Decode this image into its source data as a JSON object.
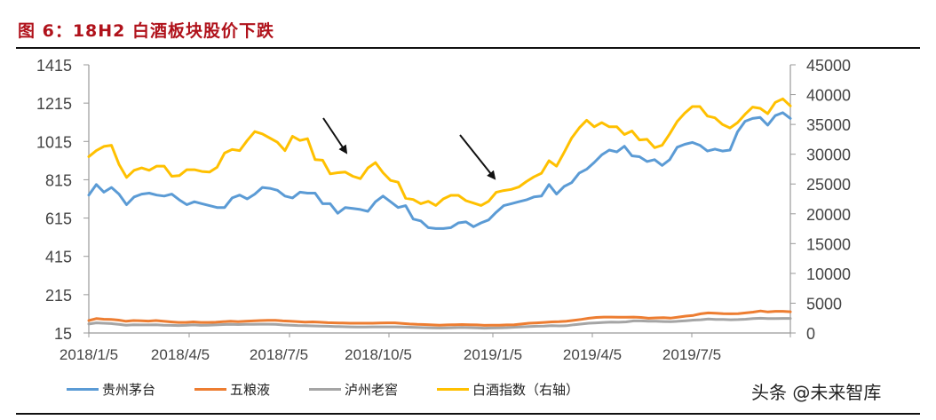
{
  "figure": {
    "title": "图 6：18H2 白酒板块股价下跌",
    "watermark": "头条 @未来智库"
  },
  "colors": {
    "title": "#b0121b",
    "moutai": "#5b9bd5",
    "wuliangye": "#ed7d31",
    "luzhou": "#a5a5a5",
    "baijiu_index": "#ffc000",
    "axis": "#999999",
    "tick_text": "#444444"
  },
  "chart_data": {
    "type": "line",
    "title": "18H2 白酒板块股价下跌",
    "xlabel": "",
    "ylabel": "",
    "y2label": "",
    "x_tick_labels": [
      "2018/1/5",
      "2018/4/5",
      "2018/7/5",
      "2018/10/5",
      "2019/1/5",
      "2019/4/5",
      "2019/7/5"
    ],
    "left_axis": {
      "ticks": [
        15,
        215,
        415,
        615,
        815,
        1015,
        1215,
        1415
      ],
      "range": [
        15,
        1415
      ]
    },
    "right_axis": {
      "ticks": [
        0,
        5000,
        10000,
        15000,
        20000,
        25000,
        30000,
        35000,
        40000,
        45000
      ],
      "range": [
        0,
        45000
      ]
    },
    "grid": false,
    "legend_position": "bottom",
    "annotations": [
      {
        "type": "arrow",
        "near": "2018/7-8",
        "direction": "down-right"
      },
      {
        "type": "arrow",
        "near": "2018/12-2019/1",
        "direction": "down-right"
      }
    ],
    "series": [
      {
        "name": "贵州茅台",
        "axis": "left",
        "values": [
          735,
          790,
          750,
          775,
          740,
          685,
          725,
          740,
          745,
          735,
          730,
          740,
          710,
          685,
          700,
          690,
          680,
          670,
          670,
          720,
          735,
          715,
          740,
          775,
          770,
          760,
          730,
          720,
          750,
          745,
          745,
          690,
          690,
          640,
          670,
          665,
          660,
          650,
          700,
          730,
          700,
          670,
          680,
          610,
          600,
          565,
          560,
          560,
          565,
          590,
          595,
          570,
          590,
          605,
          645,
          680,
          690,
          700,
          710,
          725,
          730,
          790,
          740,
          780,
          800,
          850,
          870,
          905,
          945,
          970,
          960,
          990,
          940,
          935,
          910,
          920,
          890,
          920,
          985,
          1000,
          1010,
          995,
          965,
          975,
          965,
          970,
          1065,
          1120,
          1135,
          1140,
          1100,
          1150,
          1165,
          1135
        ]
      },
      {
        "name": "五粮液",
        "axis": "left",
        "values": [
          80,
          90,
          87,
          86,
          82,
          76,
          80,
          79,
          77,
          80,
          76,
          73,
          70,
          70,
          73,
          70,
          70,
          71,
          74,
          76,
          74,
          76,
          78,
          80,
          81,
          81,
          78,
          76,
          74,
          72,
          73,
          71,
          69,
          68,
          67,
          66,
          66,
          66,
          66,
          67,
          68,
          68,
          65,
          62,
          60,
          59,
          57,
          56,
          57,
          58,
          59,
          58,
          57,
          55,
          56,
          56,
          57,
          58,
          62,
          66,
          68,
          70,
          73,
          74,
          76,
          81,
          86,
          92,
          96,
          98,
          98,
          97,
          97,
          98,
          96,
          92,
          94,
          95,
          93,
          98,
          103,
          107,
          115,
          120,
          118,
          116,
          115,
          116,
          120,
          124,
          130,
          125,
          128,
          128,
          126
        ]
      },
      {
        "name": "泸州老窖",
        "axis": "left",
        "values": [
          62,
          68,
          66,
          64,
          60,
          56,
          58,
          57,
          57,
          58,
          56,
          55,
          54,
          55,
          57,
          55,
          56,
          57,
          59,
          60,
          59,
          60,
          60,
          61,
          61,
          60,
          57,
          56,
          54,
          53,
          52,
          51,
          50,
          49,
          48,
          47,
          46,
          46,
          47,
          47,
          47,
          47,
          46,
          45,
          44,
          43,
          42,
          41,
          42,
          43,
          44,
          43,
          42,
          40,
          41,
          42,
          43,
          45,
          47,
          49,
          50,
          51,
          53,
          52,
          53,
          58,
          62,
          66,
          68,
          70,
          72,
          71,
          73,
          78,
          78,
          76,
          76,
          75,
          74,
          76,
          79,
          82,
          84,
          88,
          86,
          86,
          84,
          85,
          87,
          90,
          92,
          90,
          90,
          91,
          91
        ]
      },
      {
        "name": "白酒指数（右轴）",
        "axis": "right",
        "values": [
          29600,
          30600,
          31300,
          31500,
          28300,
          26100,
          27300,
          27700,
          27300,
          28000,
          28000,
          26300,
          26400,
          27400,
          27400,
          27100,
          27000,
          27800,
          30200,
          30800,
          30600,
          32300,
          33800,
          33400,
          32700,
          32000,
          30600,
          33000,
          32300,
          32600,
          29100,
          29000,
          26700,
          26900,
          27000,
          26300,
          25900,
          27700,
          28600,
          26900,
          25600,
          25300,
          22600,
          22400,
          21700,
          22100,
          21400,
          22500,
          23100,
          23100,
          22200,
          21800,
          21400,
          22100,
          23600,
          23900,
          24100,
          24500,
          25400,
          26200,
          26800,
          28900,
          28000,
          30300,
          32700,
          34400,
          35700,
          34600,
          35300,
          34600,
          34600,
          33300,
          33900,
          32400,
          32500,
          31100,
          31500,
          33400,
          35500,
          36900,
          38000,
          38000,
          36400,
          36100,
          35000,
          34400,
          35300,
          36700,
          37900,
          37700,
          36800,
          38700,
          39300,
          38100
        ]
      }
    ]
  },
  "legend": {
    "items": [
      {
        "label": "贵州茅台",
        "color": "#5b9bd5"
      },
      {
        "label": "五粮液",
        "color": "#ed7d31"
      },
      {
        "label": "泸州老窖",
        "color": "#a5a5a5"
      },
      {
        "label": "白酒指数（右轴）",
        "color": "#ffc000"
      }
    ]
  }
}
